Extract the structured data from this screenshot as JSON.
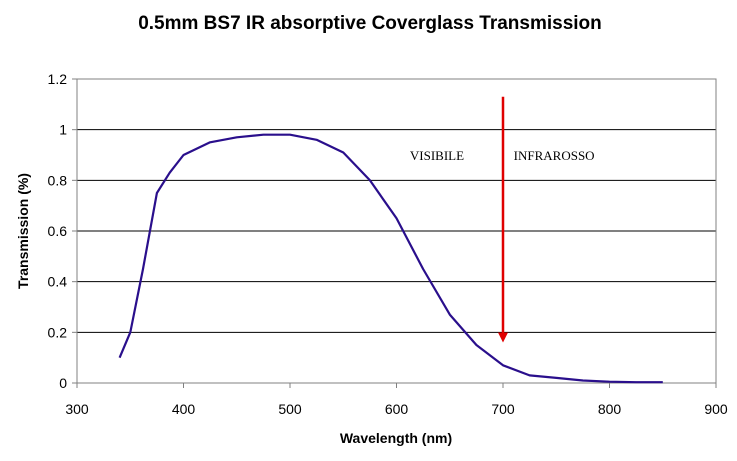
{
  "chart_data": {
    "type": "line",
    "title": "0.5mm BS7 IR absorptive Coverglass Transmission",
    "xlabel": "Wavelength (nm)",
    "ylabel": "Transmission (%)",
    "xlim": [
      300,
      900
    ],
    "ylim": [
      0,
      1.2
    ],
    "xticks": [
      "300",
      "400",
      "500",
      "600",
      "700",
      "800",
      "900"
    ],
    "yticks": [
      "0",
      "0.2",
      "0.4",
      "0.6",
      "0.8",
      "1",
      "1.2"
    ],
    "grid": "horizontal",
    "series": [
      {
        "color": "#2a0f8c",
        "x": [
          340,
          350,
          362,
          375,
          387,
          400,
          425,
          450,
          475,
          500,
          525,
          550,
          575,
          600,
          625,
          650,
          675,
          700,
          725,
          750,
          775,
          800,
          825,
          850
        ],
        "y": [
          0.1,
          0.2,
          0.45,
          0.75,
          0.83,
          0.9,
          0.95,
          0.97,
          0.98,
          0.98,
          0.96,
          0.91,
          0.8,
          0.65,
          0.45,
          0.27,
          0.15,
          0.07,
          0.03,
          0.02,
          0.01,
          0.005,
          0.003,
          0.003
        ]
      }
    ],
    "annotations": [
      {
        "text": "VISIBILE",
        "x": 638,
        "y": 0.88
      },
      {
        "text": "INFRAROSSO",
        "x": 748,
        "y": 0.88
      }
    ],
    "arrow": {
      "x": 700,
      "y_start": 1.13,
      "y_end": 0.16,
      "color": "#e00000"
    }
  }
}
